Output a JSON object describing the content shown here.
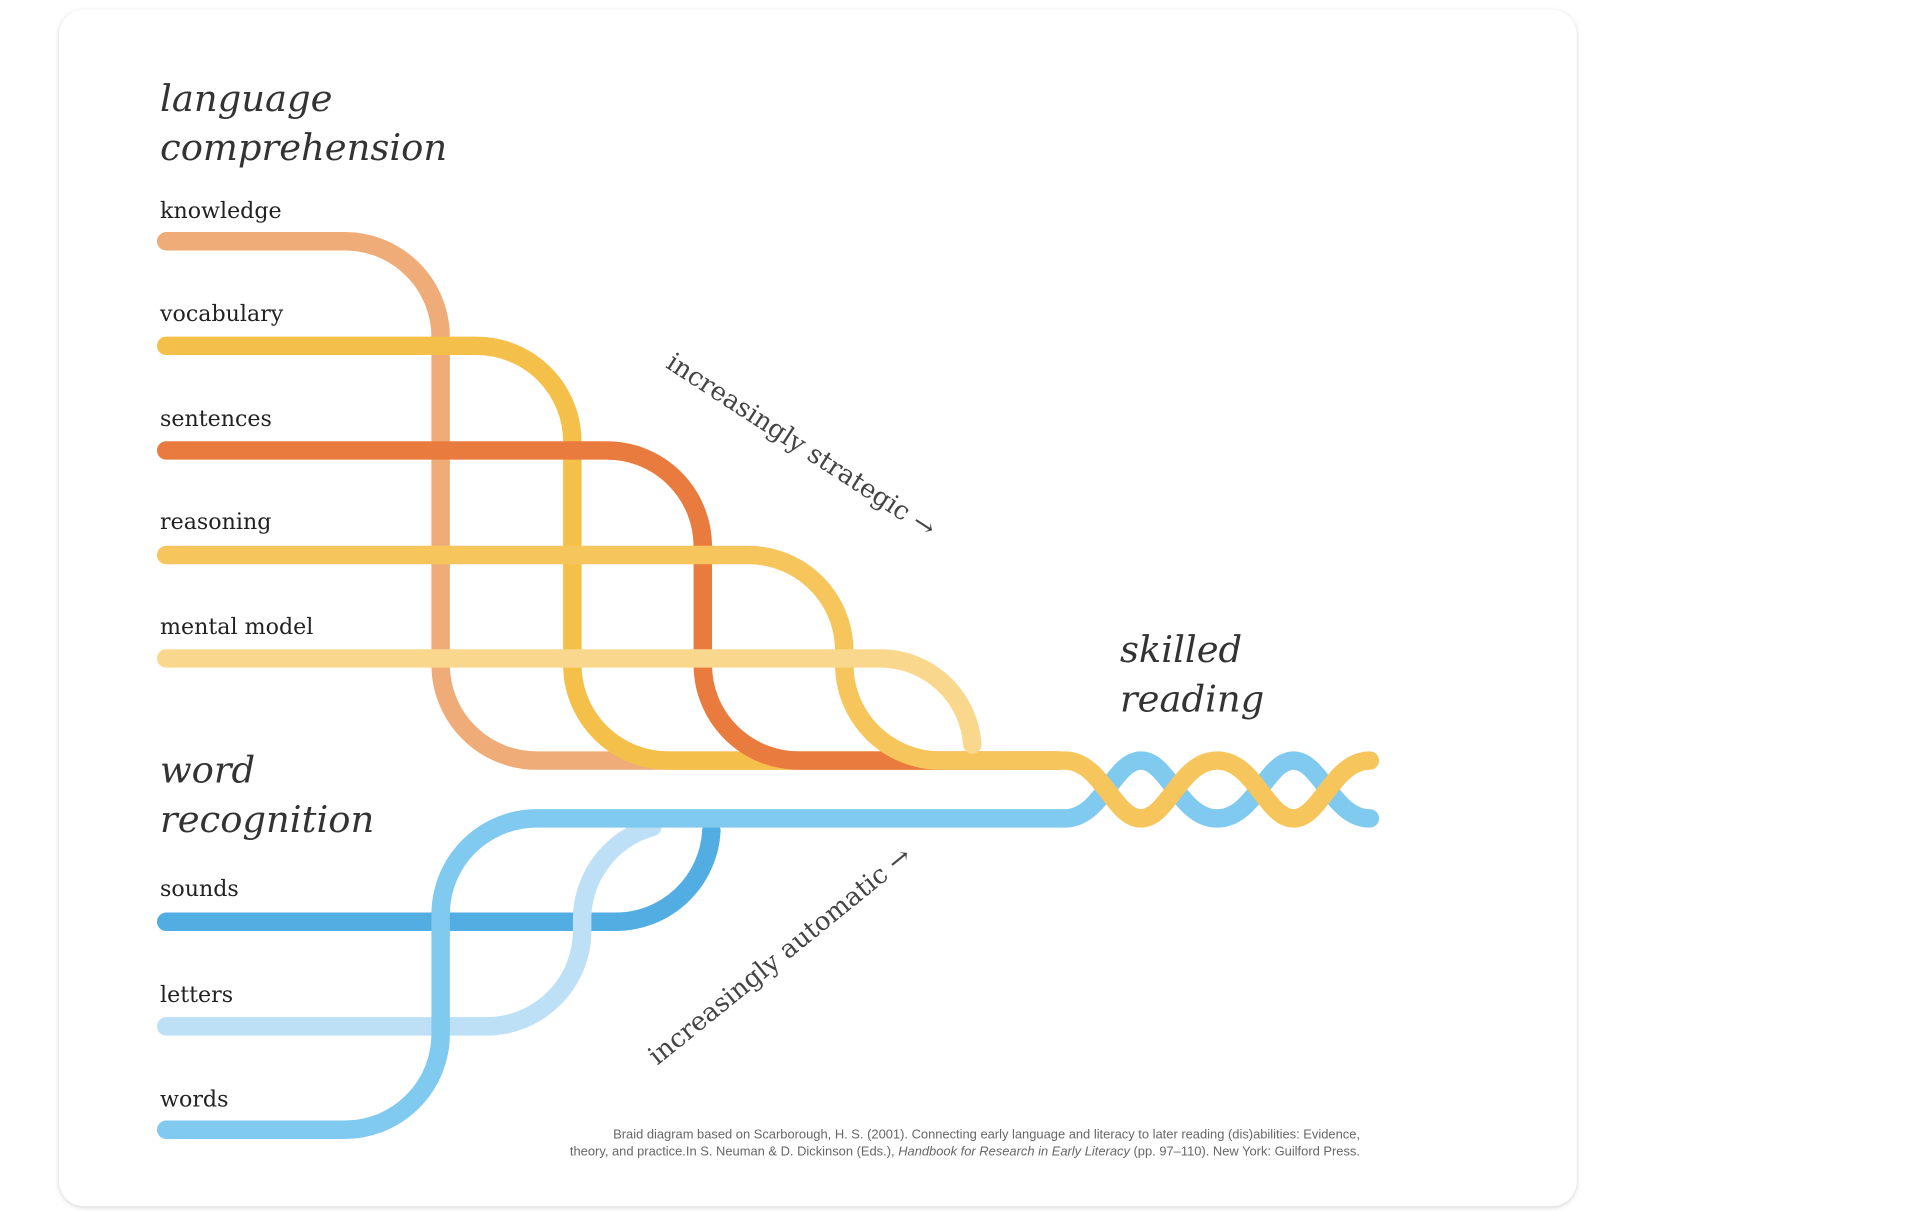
{
  "language_comprehension": {
    "title_lines": [
      "language",
      "comprehension"
    ],
    "strands": [
      "knowledge",
      "vocabulary",
      "sentences",
      "reasoning",
      "mental model"
    ]
  },
  "word_recognition": {
    "title_lines": [
      "word",
      "recognition"
    ],
    "strands": [
      "sounds",
      "letters",
      "words"
    ]
  },
  "result": {
    "title_lines": [
      "skilled",
      "reading"
    ]
  },
  "annotations": {
    "strategic": "increasingly strategic →",
    "automatic": "increasingly automatic →"
  },
  "citation": {
    "line1": "Braid diagram based on Scarborough, H. S. (2001). Connecting early language and literacy to later reading (dis)abilities: Evidence,",
    "line2_start": "theory, and practice.In S. Neuman & D. Dickinson (Eds.), ",
    "line2_title": "Handbook for Research in Early Literacy",
    "line2_end": " (pp. 97–110). New York: Guilford Press."
  }
}
